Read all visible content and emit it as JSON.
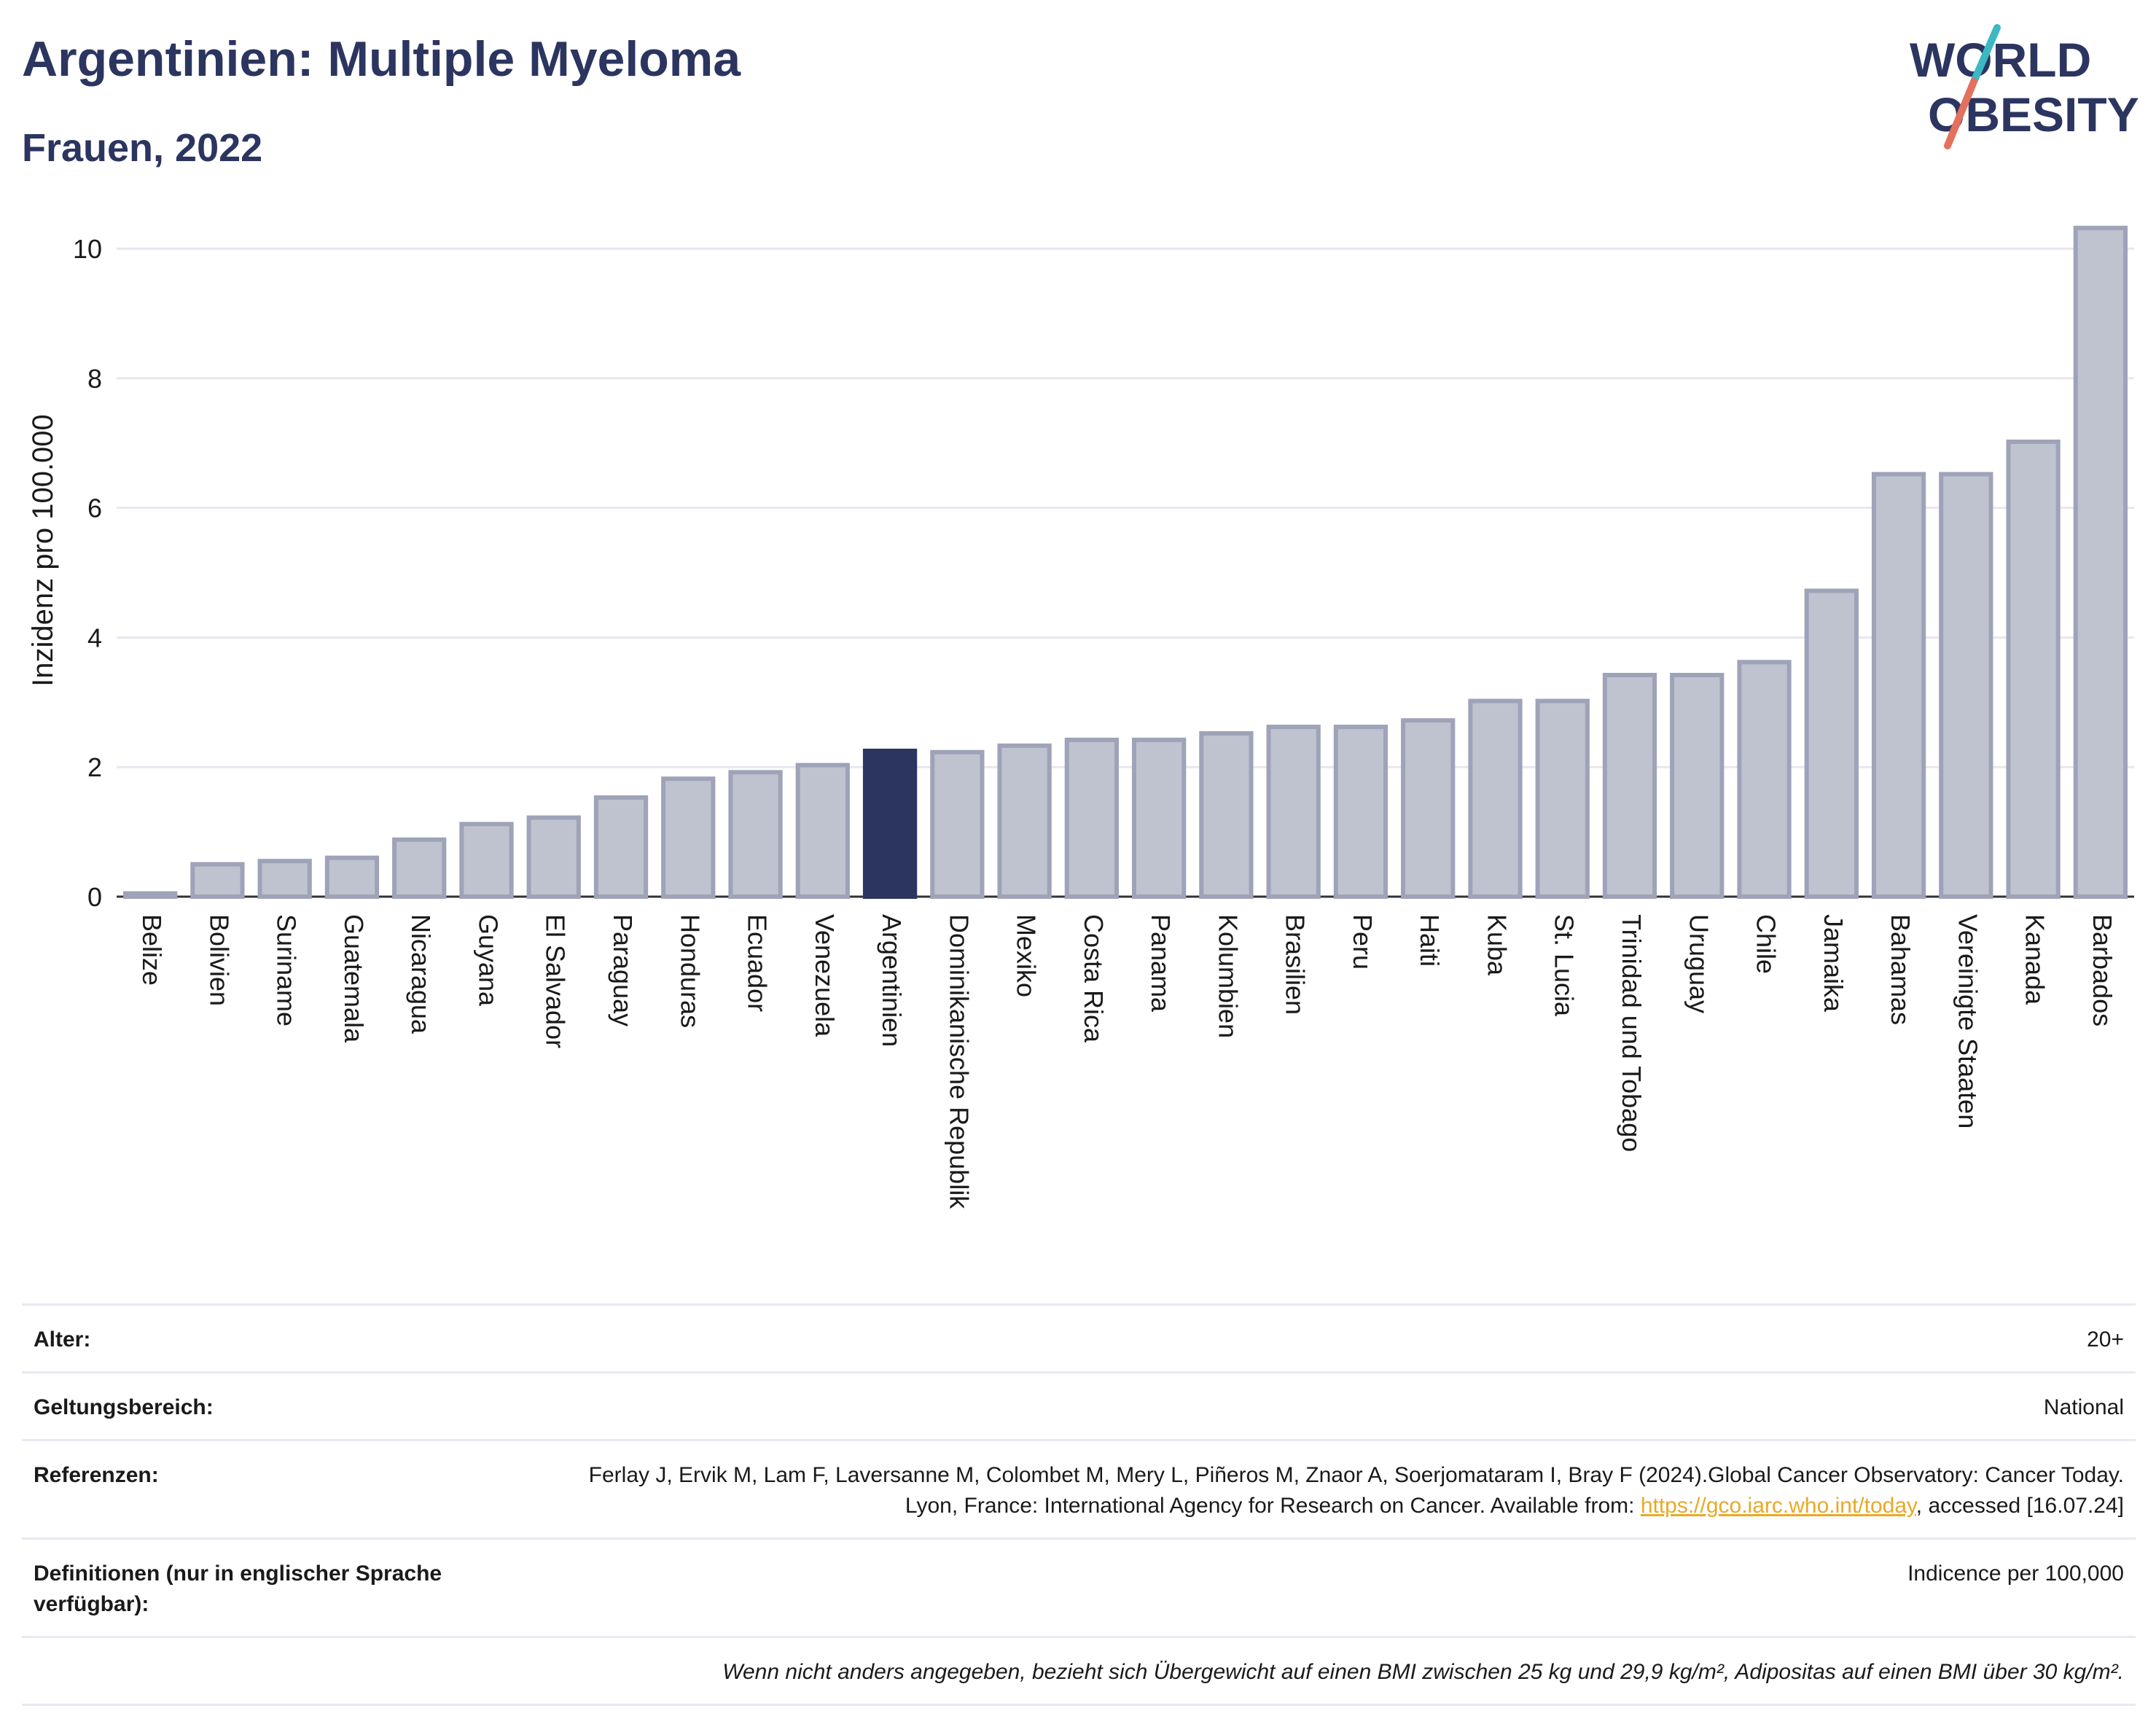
{
  "header": {
    "title": "Argentinien: Multiple Myeloma",
    "subtitle": "Frauen, 2022"
  },
  "logo": {
    "line1": "WORLD",
    "line2": "OBESITY"
  },
  "chart_data": {
    "type": "bar",
    "ylabel": "Inzidenz pro 100.000",
    "ylim": [
      0,
      10.8
    ],
    "yticks": [
      0,
      2,
      4,
      6,
      8,
      10
    ],
    "grid": true,
    "highlight": "Argentinien",
    "colors": {
      "bar": "#bfc2cf",
      "bar_border": "#9ea3b8",
      "highlight": "#2b3560"
    },
    "categories": [
      "Belize",
      "Bolivien",
      "Suriname",
      "Guatemala",
      "Nicaragua",
      "Guyana",
      "El Salvador",
      "Paraguay",
      "Honduras",
      "Ecuador",
      "Venezuela",
      "Argentinien",
      "Dominikanische Republik",
      "Mexiko",
      "Costa Rica",
      "Panama",
      "Kolumbien",
      "Brasilien",
      "Peru",
      "Haiti",
      "Kuba",
      "St. Lucia",
      "Trinidad und Tobago",
      "Uruguay",
      "Chile",
      "Jamaika",
      "Bahamas",
      "Vereinigte Staaten",
      "Kanada",
      "Barbados"
    ],
    "values": [
      0.05,
      0.5,
      0.55,
      0.6,
      0.88,
      1.12,
      1.22,
      1.53,
      1.82,
      1.92,
      2.03,
      2.25,
      2.23,
      2.33,
      2.42,
      2.42,
      2.52,
      2.62,
      2.62,
      2.72,
      3.02,
      3.02,
      3.42,
      3.42,
      3.62,
      4.72,
      6.52,
      6.52,
      7.02,
      10.32
    ]
  },
  "meta": {
    "age_label": "Alter:",
    "age_value": "20+",
    "scope_label": "Geltungsbereich:",
    "scope_value": "National",
    "ref_label": "Referenzen:",
    "ref_text_1": "Ferlay J, Ervik M, Lam F, Laversanne M, Colombet M, Mery L, Piñeros M, Znaor A, Soerjomataram I, Bray F (2024).Global Cancer Observatory: Cancer Today. Lyon, France: International Agency for Research on Cancer. Available from: ",
    "ref_link": "https://gco.iarc.who.int/today",
    "ref_text_2": ", accessed [16.07.24]",
    "def_label": "Definitionen (nur in englischer Sprache verfügbar):",
    "def_value": "Indicence per 100,000",
    "note": "Wenn nicht anders angegeben, bezieht sich Übergewicht auf einen BMI zwischen 25 kg und 29,9 kg/m², Adipositas auf einen BMI über 30 kg/m²."
  }
}
